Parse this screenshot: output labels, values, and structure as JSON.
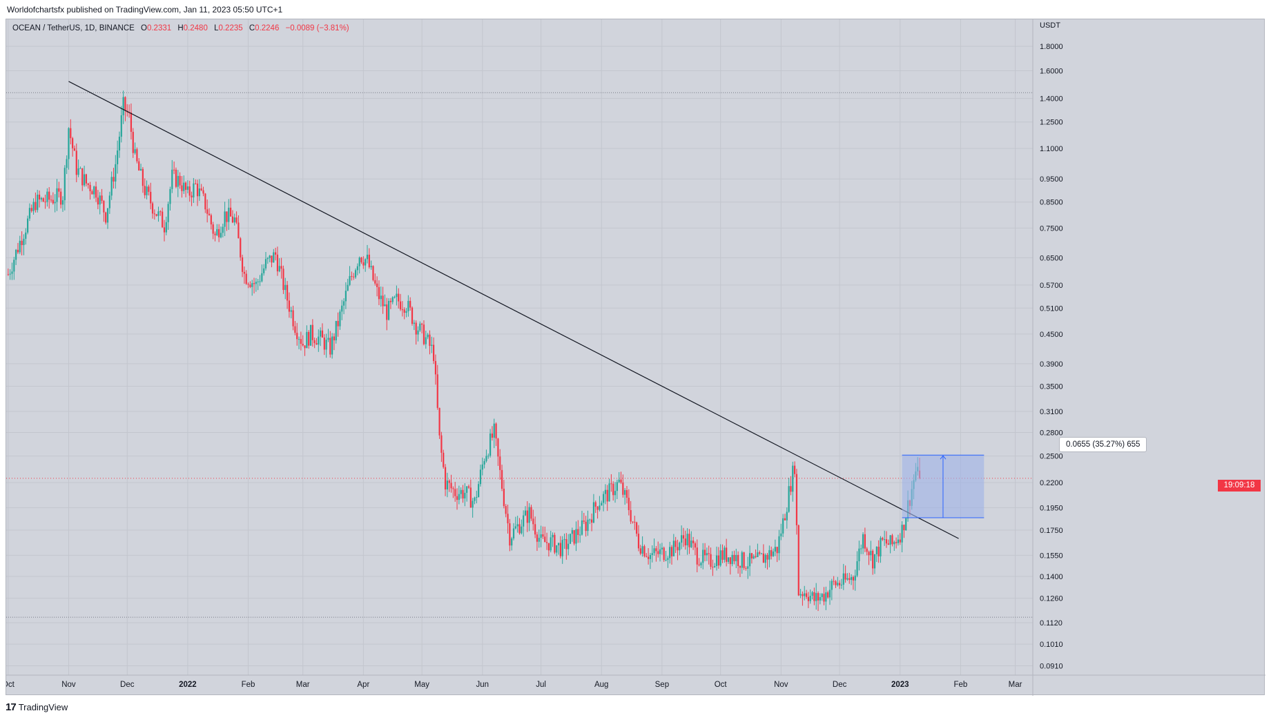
{
  "header": {
    "published": "Worldofchartsfx published on TradingView.com, Jan 11, 2023 05:50 UTC+1"
  },
  "legend": {
    "symbol": "OCEAN / TetherUS, 1D, BINANCE",
    "o_label": "O",
    "o_value": "0.2331",
    "h_label": "H",
    "h_value": "0.2480",
    "l_label": "L",
    "l_value": "0.2235",
    "c_label": "C",
    "c_value": "0.2246",
    "change": "−0.0089 (−3.81%)"
  },
  "price_tag": "19:09:18",
  "measure": {
    "label": "0.0655 (35.27%) 655"
  },
  "footer": {
    "logo": "17",
    "brand": "TradingView"
  },
  "colors": {
    "background": "#d1d4dc",
    "up": "#26a69a",
    "down": "#f23645",
    "trendline": "#131722",
    "measure_fill": "#9fb3e8",
    "measure_stroke": "#2962ff"
  },
  "chart_data": {
    "type": "candlestick",
    "scale": "log",
    "currency_label": "USDT",
    "y_ticks": [
      "1.8000",
      "1.6000",
      "1.4000",
      "1.2500",
      "1.1000",
      "0.9500",
      "0.8500",
      "0.7500",
      "0.6500",
      "0.5700",
      "0.5100",
      "0.4500",
      "0.3900",
      "0.3500",
      "0.3100",
      "0.2800",
      "0.2500",
      "0.2200",
      "0.1950",
      "0.1750",
      "0.1550",
      "0.1400",
      "0.1260",
      "0.1120",
      "0.1010",
      "0.0910"
    ],
    "x_ticks": [
      "Oct",
      "Nov",
      "Dec",
      "2022",
      "Feb",
      "Mar",
      "Apr",
      "May",
      "Jun",
      "Jul",
      "Aug",
      "Sep",
      "Oct",
      "Nov",
      "Dec",
      "2023",
      "Feb",
      "Mar"
    ],
    "bold_x_ticks": [
      "2022",
      "2023"
    ],
    "x_range": [
      "2021-09-30",
      "2023-03-10"
    ],
    "y_range": [
      0.087,
      2.05
    ],
    "last_candle": {
      "open": 0.2331,
      "high": 0.248,
      "low": 0.2235,
      "close": 0.2246
    },
    "horizontal_levels": [
      1.44,
      0.115
    ],
    "trendline": {
      "from": [
        "2021-11-01",
        1.52
      ],
      "to": [
        "2023-01-31",
        0.168
      ]
    },
    "measure": {
      "from_date": "2023-01-02",
      "to_date": "2023-02-13",
      "low": 0.1857,
      "high": 0.2512
    },
    "series": [
      {
        "values": [
          [
            "2021-10-01",
            0.6
          ],
          [
            "2021-10-08",
            0.72
          ],
          [
            "2021-10-15",
            0.85
          ],
          [
            "2021-10-22",
            0.86
          ],
          [
            "2021-10-29",
            0.88
          ],
          [
            "2021-11-01",
            1.22
          ],
          [
            "2021-11-05",
            1.0
          ],
          [
            "2021-11-10",
            0.93
          ],
          [
            "2021-11-15",
            0.9
          ],
          [
            "2021-11-20",
            0.8
          ],
          [
            "2021-11-25",
            1.02
          ],
          [
            "2021-11-29",
            1.35
          ],
          [
            "2021-12-02",
            1.28
          ],
          [
            "2021-12-05",
            1.05
          ],
          [
            "2021-12-10",
            0.9
          ],
          [
            "2021-12-15",
            0.82
          ],
          [
            "2021-12-20",
            0.76
          ],
          [
            "2021-12-24",
            0.96
          ],
          [
            "2021-12-28",
            0.94
          ],
          [
            "2022-01-01",
            0.88
          ],
          [
            "2022-01-05",
            0.92
          ],
          [
            "2022-01-10",
            0.84
          ],
          [
            "2022-01-15",
            0.72
          ],
          [
            "2022-01-20",
            0.8
          ],
          [
            "2022-01-25",
            0.78
          ],
          [
            "2022-01-30",
            0.6
          ],
          [
            "2022-02-05",
            0.57
          ],
          [
            "2022-02-10",
            0.63
          ],
          [
            "2022-02-15",
            0.66
          ],
          [
            "2022-02-20",
            0.55
          ],
          [
            "2022-02-25",
            0.47
          ],
          [
            "2022-03-01",
            0.43
          ],
          [
            "2022-03-05",
            0.45
          ],
          [
            "2022-03-10",
            0.44
          ],
          [
            "2022-03-15",
            0.42
          ],
          [
            "2022-03-20",
            0.49
          ],
          [
            "2022-03-25",
            0.58
          ],
          [
            "2022-03-30",
            0.66
          ],
          [
            "2022-04-03",
            0.64
          ],
          [
            "2022-04-08",
            0.55
          ],
          [
            "2022-04-13",
            0.5
          ],
          [
            "2022-04-18",
            0.53
          ],
          [
            "2022-04-23",
            0.52
          ],
          [
            "2022-04-28",
            0.47
          ],
          [
            "2022-05-03",
            0.44
          ],
          [
            "2022-05-07",
            0.41
          ],
          [
            "2022-05-10",
            0.27
          ],
          [
            "2022-05-13",
            0.22
          ],
          [
            "2022-05-18",
            0.21
          ],
          [
            "2022-05-23",
            0.21
          ],
          [
            "2022-05-28",
            0.2
          ],
          [
            "2022-06-02",
            0.25
          ],
          [
            "2022-06-07",
            0.28
          ],
          [
            "2022-06-10",
            0.23
          ],
          [
            "2022-06-15",
            0.17
          ],
          [
            "2022-06-20",
            0.18
          ],
          [
            "2022-06-25",
            0.19
          ],
          [
            "2022-07-01",
            0.165
          ],
          [
            "2022-07-06",
            0.165
          ],
          [
            "2022-07-12",
            0.16
          ],
          [
            "2022-07-18",
            0.17
          ],
          [
            "2022-07-24",
            0.18
          ],
          [
            "2022-07-30",
            0.2
          ],
          [
            "2022-08-05",
            0.21
          ],
          [
            "2022-08-10",
            0.22
          ],
          [
            "2022-08-15",
            0.195
          ],
          [
            "2022-08-20",
            0.165
          ],
          [
            "2022-08-26",
            0.155
          ],
          [
            "2022-09-01",
            0.157
          ],
          [
            "2022-09-07",
            0.16
          ],
          [
            "2022-09-13",
            0.17
          ],
          [
            "2022-09-19",
            0.155
          ],
          [
            "2022-09-25",
            0.15
          ],
          [
            "2022-10-01",
            0.155
          ],
          [
            "2022-10-07",
            0.155
          ],
          [
            "2022-10-13",
            0.15
          ],
          [
            "2022-10-19",
            0.15
          ],
          [
            "2022-10-25",
            0.155
          ],
          [
            "2022-10-30",
            0.16
          ],
          [
            "2022-11-03",
            0.19
          ],
          [
            "2022-11-06",
            0.22
          ],
          [
            "2022-11-08",
            0.24
          ],
          [
            "2022-11-10",
            0.13
          ],
          [
            "2022-11-14",
            0.13
          ],
          [
            "2022-11-18",
            0.125
          ],
          [
            "2022-11-23",
            0.128
          ],
          [
            "2022-11-28",
            0.135
          ],
          [
            "2022-12-03",
            0.136
          ],
          [
            "2022-12-08",
            0.14
          ],
          [
            "2022-12-13",
            0.17
          ],
          [
            "2022-12-18",
            0.152
          ],
          [
            "2022-12-23",
            0.165
          ],
          [
            "2022-12-28",
            0.163
          ],
          [
            "2023-01-02",
            0.175
          ],
          [
            "2023-01-06",
            0.205
          ],
          [
            "2023-01-09",
            0.232
          ],
          [
            "2023-01-11",
            0.2246
          ]
        ]
      }
    ]
  }
}
